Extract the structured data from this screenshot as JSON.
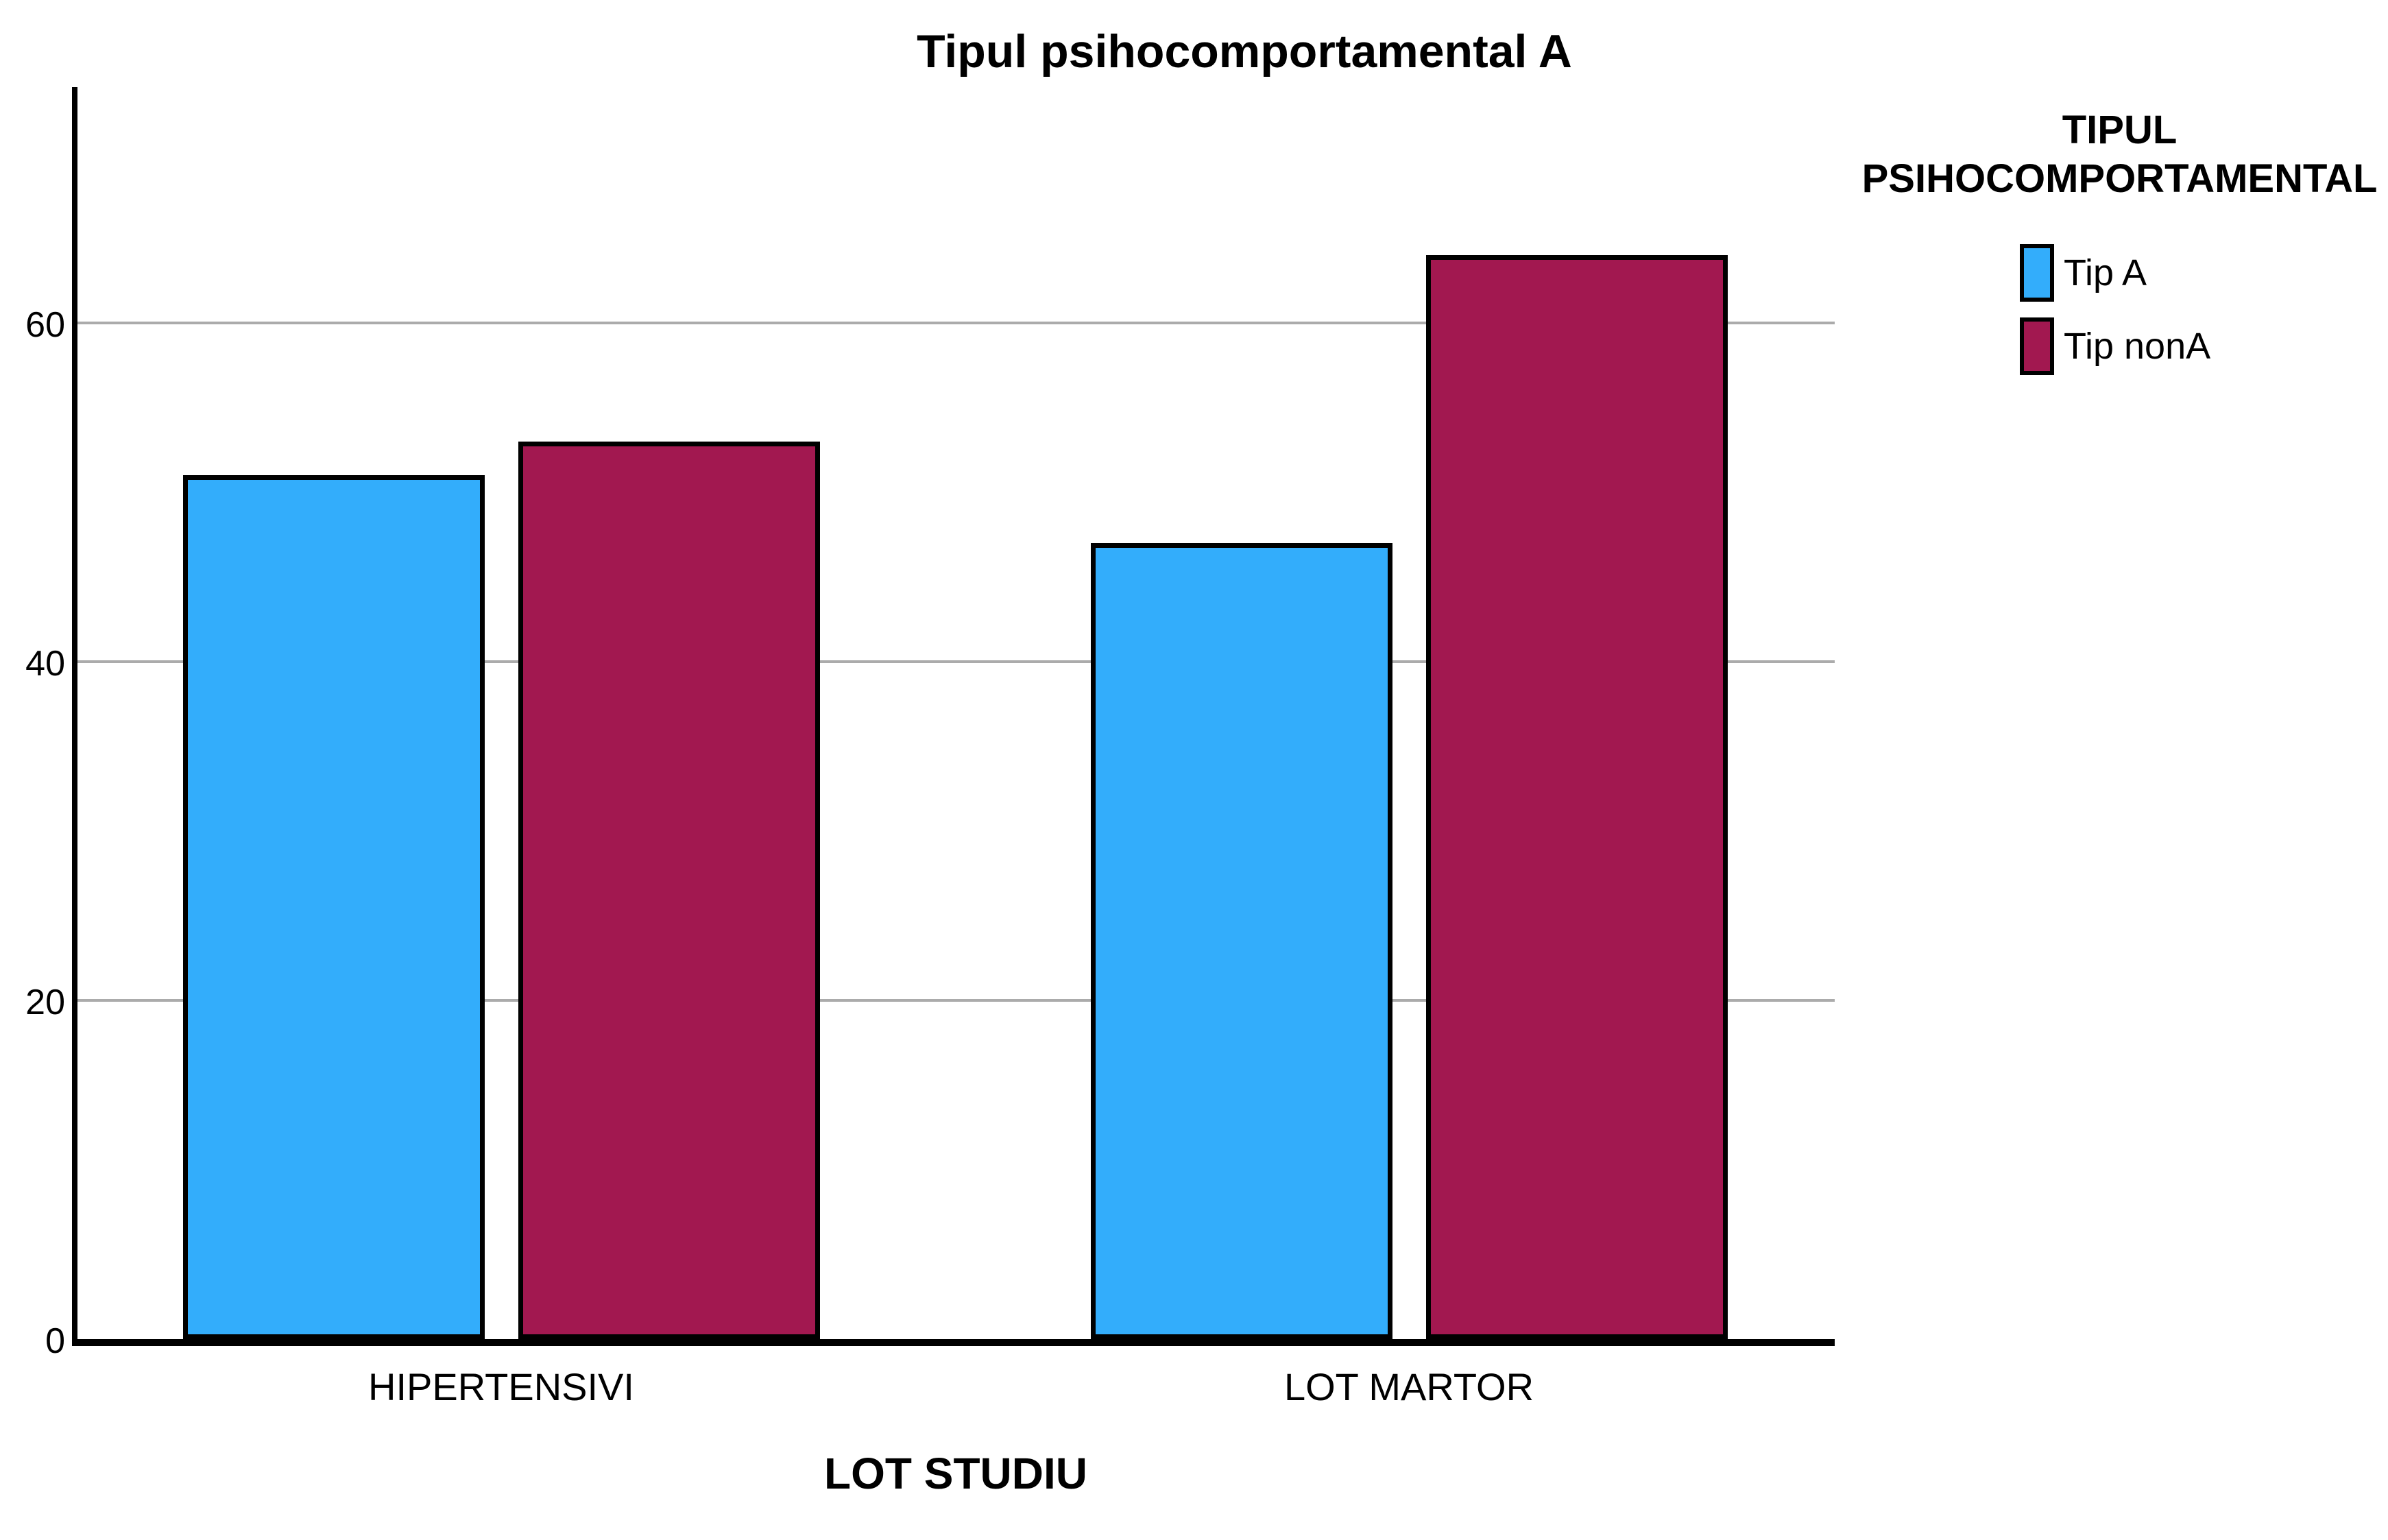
{
  "chart_data": {
    "type": "bar",
    "title": "Tipul psihocomportamental A",
    "categories": [
      "HIPERTENSIVI",
      "LOT MARTOR"
    ],
    "series": [
      {
        "name": "Tip A",
        "color": "#33ADFB",
        "values": [
          51,
          47
        ]
      },
      {
        "name": "Tip nonA",
        "color": "#A21850",
        "values": [
          53,
          64
        ]
      }
    ],
    "xlabel": "LOT STUDIU",
    "ylabel": "",
    "yticks": [
      0,
      20,
      40,
      60
    ],
    "ylim": [
      0,
      74
    ],
    "grid": "horizontal",
    "gridline_color": "#ABABAB",
    "axis_color": "#000000",
    "background": "#FFFFFF",
    "legend": {
      "title": "TIPUL PSIHOCOMPORTAMENTAL",
      "position": "right",
      "entries": [
        {
          "label": "Tip A",
          "color": "#33ADFB"
        },
        {
          "label": "Tip nonA",
          "color": "#A21850"
        }
      ]
    }
  }
}
